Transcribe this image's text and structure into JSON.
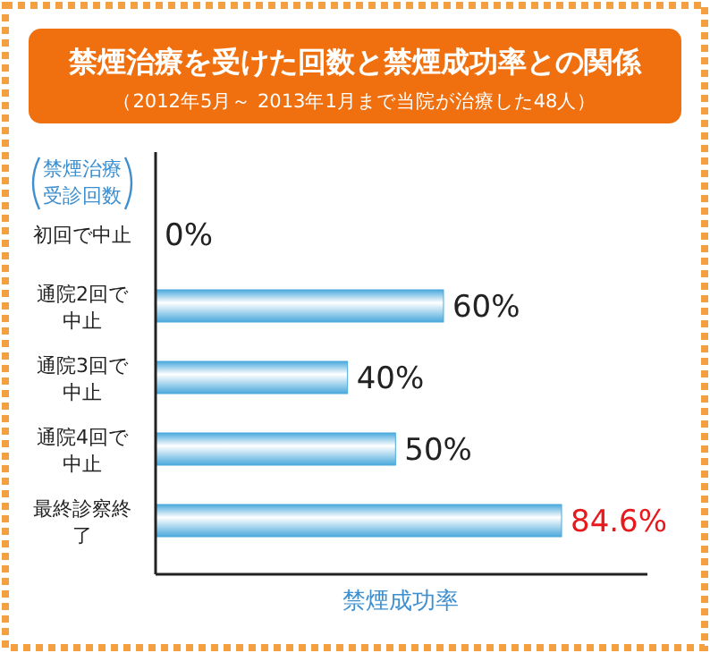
{
  "chart_data": {
    "type": "bar",
    "orientation": "horizontal",
    "title": "禁煙治療を受けた回数と禁煙成功率との関係",
    "subtitle": "（2012年5月～ 2013年1月まで当院が治療した48人）",
    "ylabel": "禁煙治療受診回数",
    "xlabel": "禁煙成功率",
    "categories": [
      "初回で中止",
      "通院2回で中止",
      "通院3回で中止",
      "通院4回で中止",
      "最終診察終了"
    ],
    "values": [
      0,
      60,
      40,
      50,
      84.6
    ],
    "value_labels": [
      "0%",
      "60%",
      "40%",
      "50%",
      "84.6%"
    ],
    "color": "#4aa9dc"
  }
}
